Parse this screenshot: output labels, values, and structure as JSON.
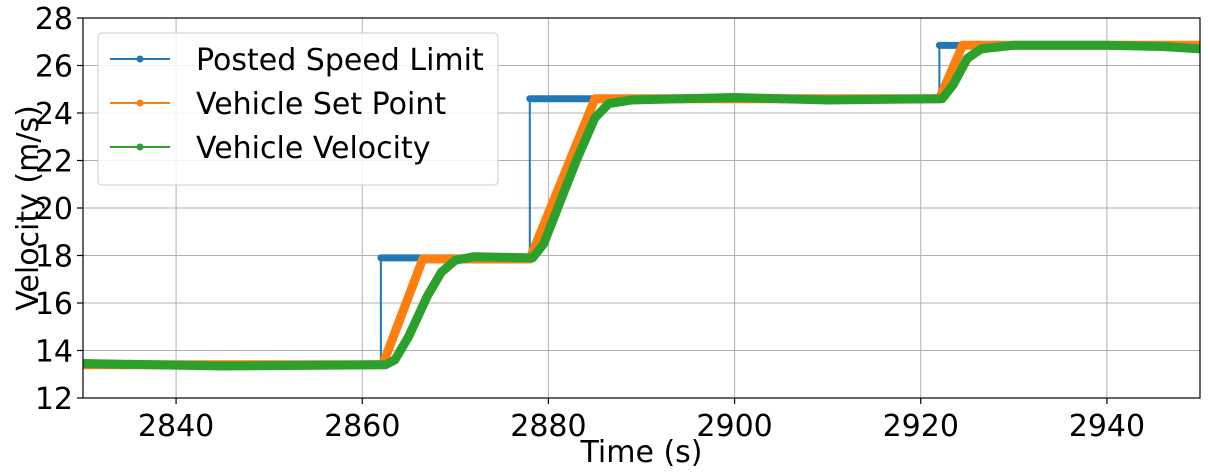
{
  "chart_data": {
    "type": "line",
    "xlabel": "Time (s)",
    "ylabel": "Velocity (m/s)",
    "xlim": [
      2830,
      2950
    ],
    "ylim": [
      12,
      28
    ],
    "xticks": [
      2840,
      2860,
      2880,
      2900,
      2920,
      2940
    ],
    "yticks": [
      12,
      14,
      16,
      18,
      20,
      22,
      24,
      26,
      28
    ],
    "grid": true,
    "legend_position": "upper-left",
    "series": [
      {
        "name": "Posted Speed Limit",
        "color": "#1f77b4",
        "points": [
          [
            2830,
            13.4
          ],
          [
            2862,
            13.4
          ],
          [
            2862,
            17.9
          ],
          [
            2878,
            17.9
          ],
          [
            2878,
            24.6
          ],
          [
            2922,
            24.6
          ],
          [
            2922,
            26.85
          ],
          [
            2950,
            26.85
          ]
        ],
        "marker_segments": [
          [
            2862,
            2878,
            17.9
          ],
          [
            2878,
            2885,
            24.6
          ],
          [
            2922,
            2950,
            26.85
          ]
        ]
      },
      {
        "name": "Vehicle Set Point",
        "color": "#ff7f0e",
        "points": [
          [
            2830,
            13.4
          ],
          [
            2862.2,
            13.4
          ],
          [
            2866.5,
            17.85
          ],
          [
            2878,
            17.85
          ],
          [
            2885,
            24.6
          ],
          [
            2922,
            24.6
          ],
          [
            2924.5,
            26.85
          ],
          [
            2950,
            26.85
          ]
        ]
      },
      {
        "name": "Vehicle Velocity",
        "color": "#2ca02c",
        "points": [
          [
            2830,
            13.45
          ],
          [
            2845,
            13.35
          ],
          [
            2862.5,
            13.4
          ],
          [
            2863.5,
            13.6
          ],
          [
            2865,
            14.6
          ],
          [
            2867,
            16.3
          ],
          [
            2868.5,
            17.3
          ],
          [
            2870,
            17.8
          ],
          [
            2872,
            17.95
          ],
          [
            2878.3,
            17.9
          ],
          [
            2879.5,
            18.5
          ],
          [
            2881,
            20.0
          ],
          [
            2883,
            22.0
          ],
          [
            2885,
            23.8
          ],
          [
            2886.5,
            24.4
          ],
          [
            2889,
            24.55
          ],
          [
            2900,
            24.65
          ],
          [
            2910,
            24.55
          ],
          [
            2922.3,
            24.6
          ],
          [
            2923.5,
            25.2
          ],
          [
            2925,
            26.3
          ],
          [
            2926.5,
            26.7
          ],
          [
            2930,
            26.85
          ],
          [
            2940,
            26.85
          ],
          [
            2946,
            26.8
          ],
          [
            2950,
            26.7
          ]
        ]
      }
    ]
  }
}
